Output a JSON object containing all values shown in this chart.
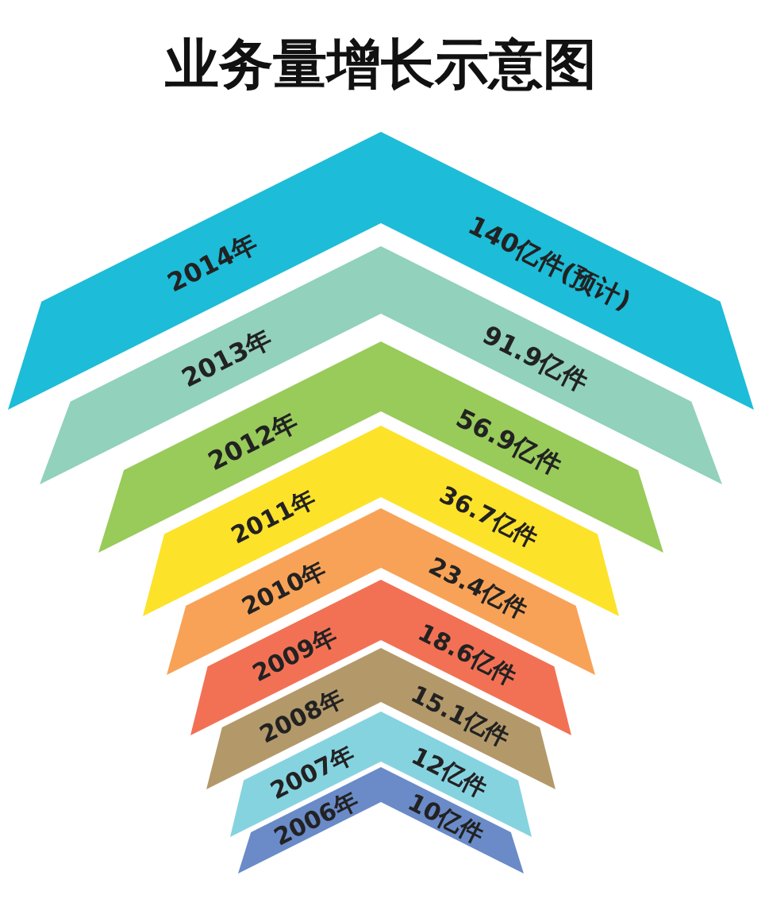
{
  "chart_data": {
    "type": "other",
    "title": "业务量增长示意图",
    "categories": [
      "2014年",
      "2013年",
      "2012年",
      "2011年",
      "2010年",
      "2009年",
      "2008年",
      "2007年",
      "2006年"
    ],
    "values": [
      140,
      91.9,
      56.9,
      36.7,
      23.4,
      18.6,
      15.1,
      12,
      10
    ],
    "value_labels": [
      "140亿件(预计)",
      "91.9亿件",
      "56.9亿件",
      "36.7亿件",
      "23.4亿件",
      "18.6亿件",
      "15.1亿件",
      "12亿件",
      "10亿件"
    ],
    "colors": [
      "#1dbcd8",
      "#92d1bb",
      "#98cb5a",
      "#fde22a",
      "#f8a257",
      "#f27155",
      "#b39969",
      "#86d3e0",
      "#6a8bc8"
    ]
  }
}
